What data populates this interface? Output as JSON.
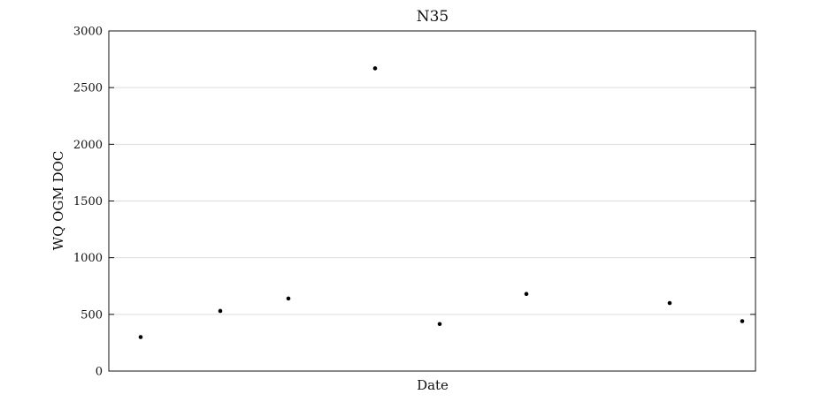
{
  "chart_data": {
    "type": "scatter",
    "title": "N35",
    "xlabel": "Date",
    "ylabel": "WQ OGM DOC",
    "ylim": [
      0,
      3000
    ],
    "yticks": [
      0,
      500,
      1000,
      1500,
      2000,
      2500,
      3000
    ],
    "grid": true,
    "legend": "none",
    "x_tick_labels_shown": false,
    "series": [
      {
        "color": "#000000",
        "points": [
          {
            "x": 1,
            "y": 300
          },
          {
            "x": 2,
            "y": 530
          },
          {
            "x": 3,
            "y": 640
          },
          {
            "x": 4,
            "y": 2670
          },
          {
            "x": 5,
            "y": 415
          },
          {
            "x": 6,
            "y": 680
          },
          {
            "x": 7,
            "y": 600
          },
          {
            "x": 8,
            "y": 440
          }
        ]
      }
    ]
  }
}
